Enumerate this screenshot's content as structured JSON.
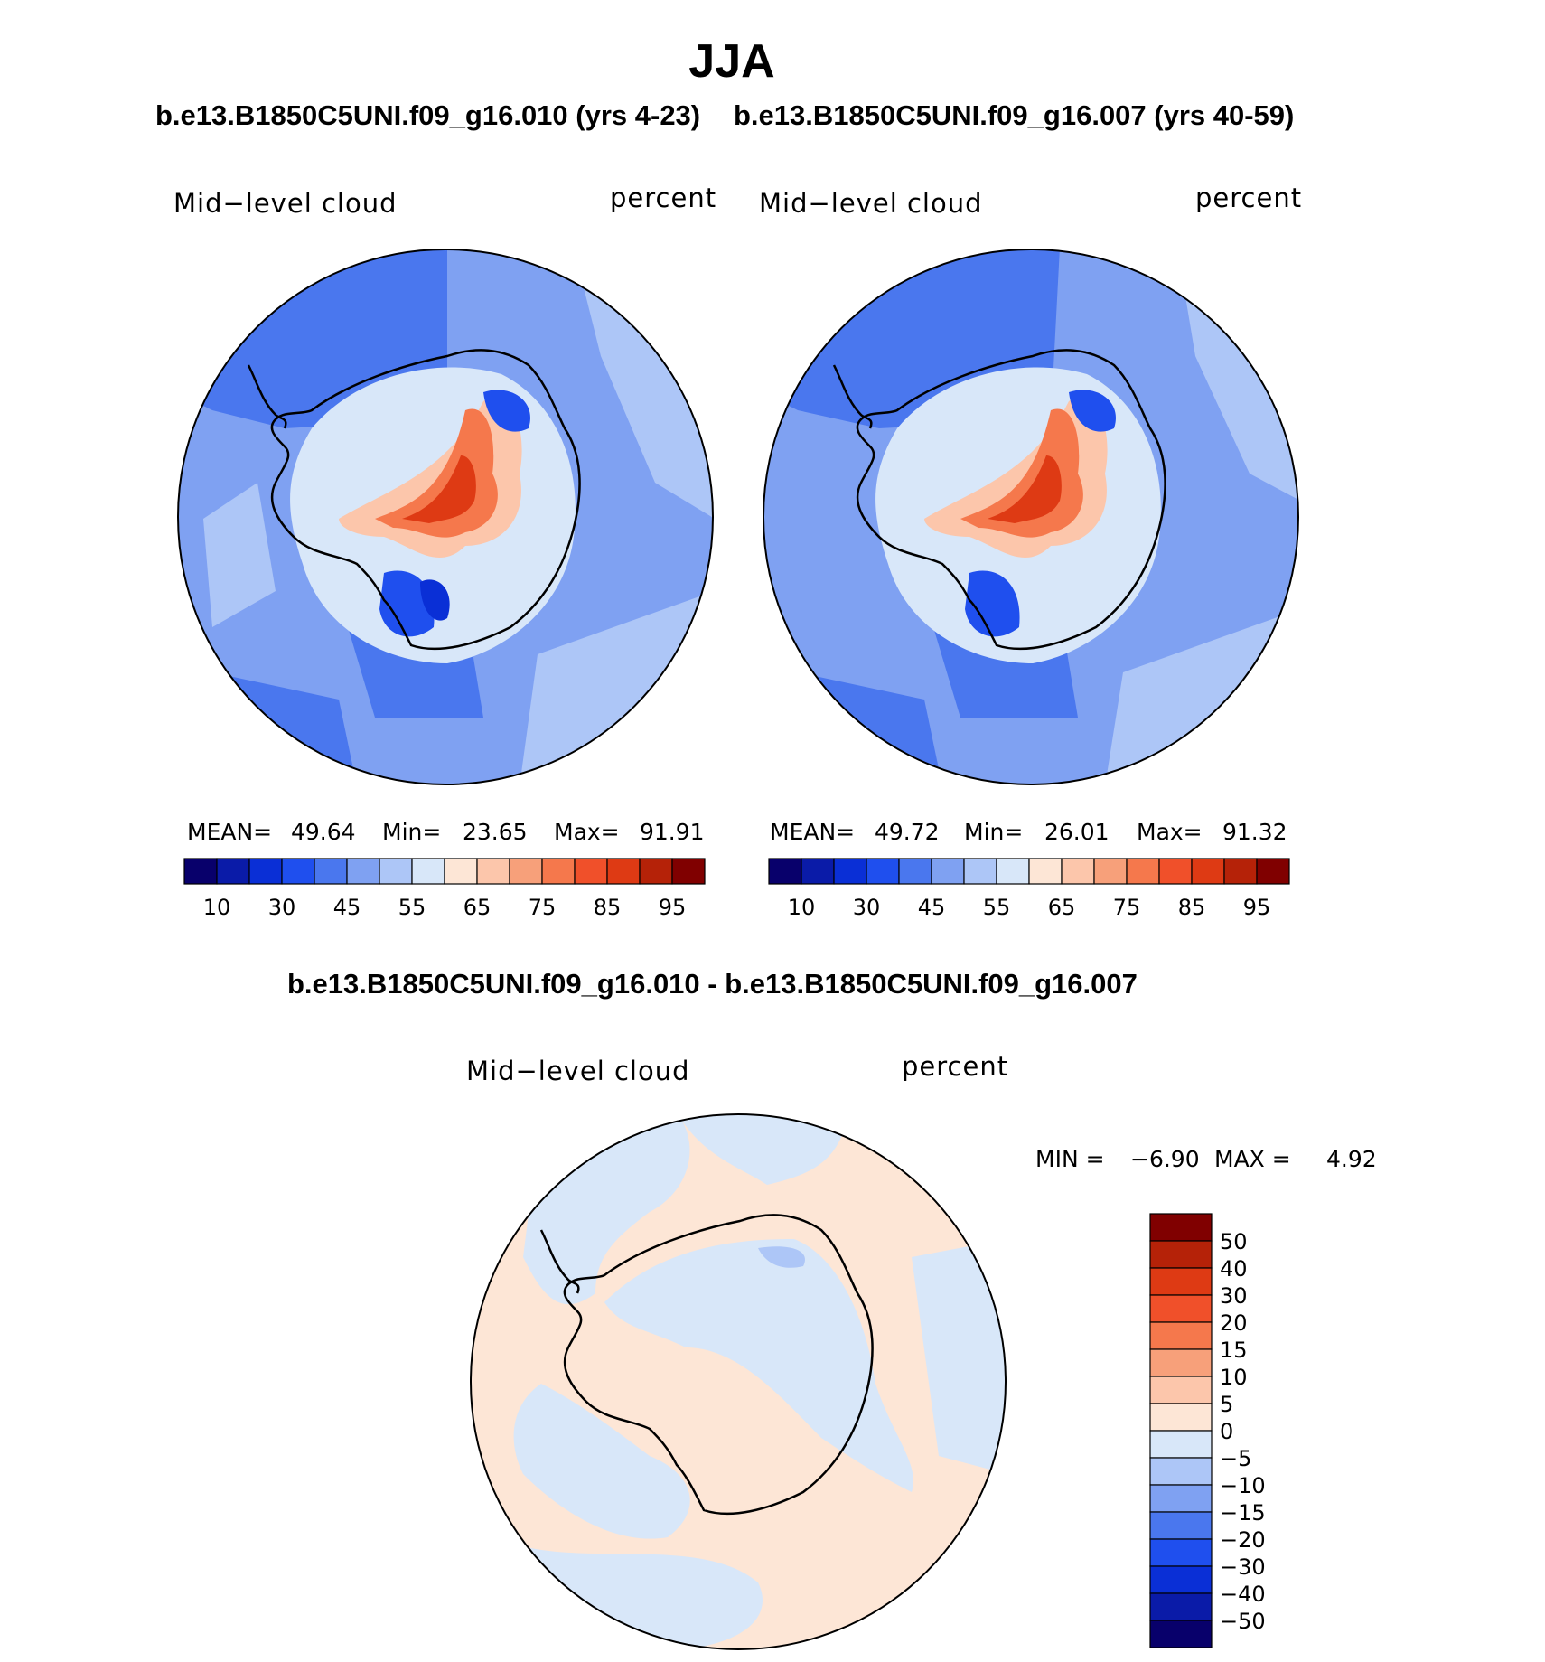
{
  "title": "JJA",
  "top_subtitle_left": "b.e13.B1850C5UNI.f09_g16.010 (yrs 4-23)",
  "top_subtitle_right": "b.e13.B1850C5UNI.f09_g16.007 (yrs 40-59)",
  "diff_subtitle": "b.e13.B1850C5UNI.f09_g16.010 - b.e13.B1850C5UNI.f09_g16.007",
  "panels": [
    {
      "variable": "Mid−level cloud",
      "units": "percent",
      "mean_label": "MEAN=",
      "mean": "49.64",
      "min_label": "Min=",
      "min": "23.65",
      "max_label": "Max=",
      "max": "91.91"
    },
    {
      "variable": "Mid−level cloud",
      "units": "percent",
      "mean_label": "MEAN=",
      "mean": "49.72",
      "min_label": "Min=",
      "min": "26.01",
      "max_label": "Max=",
      "max": "91.32"
    }
  ],
  "diff_panel": {
    "variable": "Mid−level cloud",
    "units": "percent",
    "min_label": "MIN =",
    "min": "−6.90",
    "max_label": "MAX =",
    "max": "4.92"
  },
  "colorbar_main": {
    "colors": [
      "#08006b",
      "#0a1ba8",
      "#0a2fd6",
      "#1f4fee",
      "#4a77ee",
      "#7fa1f2",
      "#adc6f7",
      "#d8e7f9",
      "#fde6d6",
      "#fcc6ab",
      "#f7a07a",
      "#f5784c",
      "#f0502a",
      "#de3a14",
      "#b52208",
      "#800000"
    ],
    "labels": [
      "10",
      "30",
      "45",
      "55",
      "65",
      "75",
      "85",
      "95"
    ]
  },
  "colorbar_diff": {
    "colors": [
      "#800000",
      "#b52208",
      "#de3a14",
      "#f0502a",
      "#f5784c",
      "#f7a07a",
      "#fcc6ab",
      "#fde6d6",
      "#d8e7f9",
      "#adc6f7",
      "#7fa1f2",
      "#4a77ee",
      "#1f4fee",
      "#0a2fd6",
      "#0a1ba8",
      "#08006b"
    ],
    "labels": [
      "50",
      "40",
      "30",
      "20",
      "15",
      "10",
      "5",
      "0",
      "−5",
      "−10",
      "−15",
      "−20",
      "−30",
      "−40",
      "−50"
    ]
  }
}
